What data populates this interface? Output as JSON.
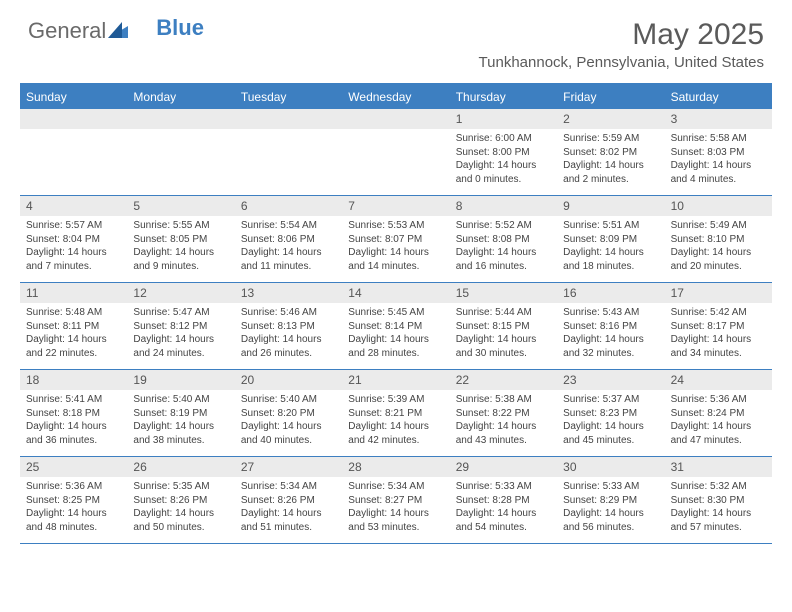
{
  "logo": {
    "text1": "General",
    "text2": "Blue"
  },
  "title": "May 2025",
  "location": "Tunkhannock, Pennsylvania, United States",
  "colors": {
    "accent": "#3d7fc1",
    "header_bg": "#3d7fc1",
    "header_text": "#ffffff",
    "daynum_bg": "#ebebeb",
    "text": "#5a5a5a"
  },
  "day_headers": [
    "Sunday",
    "Monday",
    "Tuesday",
    "Wednesday",
    "Thursday",
    "Friday",
    "Saturday"
  ],
  "weeks": [
    [
      {
        "n": "",
        "sr": "",
        "ss": "",
        "dl": ""
      },
      {
        "n": "",
        "sr": "",
        "ss": "",
        "dl": ""
      },
      {
        "n": "",
        "sr": "",
        "ss": "",
        "dl": ""
      },
      {
        "n": "",
        "sr": "",
        "ss": "",
        "dl": ""
      },
      {
        "n": "1",
        "sr": "Sunrise: 6:00 AM",
        "ss": "Sunset: 8:00 PM",
        "dl": "Daylight: 14 hours and 0 minutes."
      },
      {
        "n": "2",
        "sr": "Sunrise: 5:59 AM",
        "ss": "Sunset: 8:02 PM",
        "dl": "Daylight: 14 hours and 2 minutes."
      },
      {
        "n": "3",
        "sr": "Sunrise: 5:58 AM",
        "ss": "Sunset: 8:03 PM",
        "dl": "Daylight: 14 hours and 4 minutes."
      }
    ],
    [
      {
        "n": "4",
        "sr": "Sunrise: 5:57 AM",
        "ss": "Sunset: 8:04 PM",
        "dl": "Daylight: 14 hours and 7 minutes."
      },
      {
        "n": "5",
        "sr": "Sunrise: 5:55 AM",
        "ss": "Sunset: 8:05 PM",
        "dl": "Daylight: 14 hours and 9 minutes."
      },
      {
        "n": "6",
        "sr": "Sunrise: 5:54 AM",
        "ss": "Sunset: 8:06 PM",
        "dl": "Daylight: 14 hours and 11 minutes."
      },
      {
        "n": "7",
        "sr": "Sunrise: 5:53 AM",
        "ss": "Sunset: 8:07 PM",
        "dl": "Daylight: 14 hours and 14 minutes."
      },
      {
        "n": "8",
        "sr": "Sunrise: 5:52 AM",
        "ss": "Sunset: 8:08 PM",
        "dl": "Daylight: 14 hours and 16 minutes."
      },
      {
        "n": "9",
        "sr": "Sunrise: 5:51 AM",
        "ss": "Sunset: 8:09 PM",
        "dl": "Daylight: 14 hours and 18 minutes."
      },
      {
        "n": "10",
        "sr": "Sunrise: 5:49 AM",
        "ss": "Sunset: 8:10 PM",
        "dl": "Daylight: 14 hours and 20 minutes."
      }
    ],
    [
      {
        "n": "11",
        "sr": "Sunrise: 5:48 AM",
        "ss": "Sunset: 8:11 PM",
        "dl": "Daylight: 14 hours and 22 minutes."
      },
      {
        "n": "12",
        "sr": "Sunrise: 5:47 AM",
        "ss": "Sunset: 8:12 PM",
        "dl": "Daylight: 14 hours and 24 minutes."
      },
      {
        "n": "13",
        "sr": "Sunrise: 5:46 AM",
        "ss": "Sunset: 8:13 PM",
        "dl": "Daylight: 14 hours and 26 minutes."
      },
      {
        "n": "14",
        "sr": "Sunrise: 5:45 AM",
        "ss": "Sunset: 8:14 PM",
        "dl": "Daylight: 14 hours and 28 minutes."
      },
      {
        "n": "15",
        "sr": "Sunrise: 5:44 AM",
        "ss": "Sunset: 8:15 PM",
        "dl": "Daylight: 14 hours and 30 minutes."
      },
      {
        "n": "16",
        "sr": "Sunrise: 5:43 AM",
        "ss": "Sunset: 8:16 PM",
        "dl": "Daylight: 14 hours and 32 minutes."
      },
      {
        "n": "17",
        "sr": "Sunrise: 5:42 AM",
        "ss": "Sunset: 8:17 PM",
        "dl": "Daylight: 14 hours and 34 minutes."
      }
    ],
    [
      {
        "n": "18",
        "sr": "Sunrise: 5:41 AM",
        "ss": "Sunset: 8:18 PM",
        "dl": "Daylight: 14 hours and 36 minutes."
      },
      {
        "n": "19",
        "sr": "Sunrise: 5:40 AM",
        "ss": "Sunset: 8:19 PM",
        "dl": "Daylight: 14 hours and 38 minutes."
      },
      {
        "n": "20",
        "sr": "Sunrise: 5:40 AM",
        "ss": "Sunset: 8:20 PM",
        "dl": "Daylight: 14 hours and 40 minutes."
      },
      {
        "n": "21",
        "sr": "Sunrise: 5:39 AM",
        "ss": "Sunset: 8:21 PM",
        "dl": "Daylight: 14 hours and 42 minutes."
      },
      {
        "n": "22",
        "sr": "Sunrise: 5:38 AM",
        "ss": "Sunset: 8:22 PM",
        "dl": "Daylight: 14 hours and 43 minutes."
      },
      {
        "n": "23",
        "sr": "Sunrise: 5:37 AM",
        "ss": "Sunset: 8:23 PM",
        "dl": "Daylight: 14 hours and 45 minutes."
      },
      {
        "n": "24",
        "sr": "Sunrise: 5:36 AM",
        "ss": "Sunset: 8:24 PM",
        "dl": "Daylight: 14 hours and 47 minutes."
      }
    ],
    [
      {
        "n": "25",
        "sr": "Sunrise: 5:36 AM",
        "ss": "Sunset: 8:25 PM",
        "dl": "Daylight: 14 hours and 48 minutes."
      },
      {
        "n": "26",
        "sr": "Sunrise: 5:35 AM",
        "ss": "Sunset: 8:26 PM",
        "dl": "Daylight: 14 hours and 50 minutes."
      },
      {
        "n": "27",
        "sr": "Sunrise: 5:34 AM",
        "ss": "Sunset: 8:26 PM",
        "dl": "Daylight: 14 hours and 51 minutes."
      },
      {
        "n": "28",
        "sr": "Sunrise: 5:34 AM",
        "ss": "Sunset: 8:27 PM",
        "dl": "Daylight: 14 hours and 53 minutes."
      },
      {
        "n": "29",
        "sr": "Sunrise: 5:33 AM",
        "ss": "Sunset: 8:28 PM",
        "dl": "Daylight: 14 hours and 54 minutes."
      },
      {
        "n": "30",
        "sr": "Sunrise: 5:33 AM",
        "ss": "Sunset: 8:29 PM",
        "dl": "Daylight: 14 hours and 56 minutes."
      },
      {
        "n": "31",
        "sr": "Sunrise: 5:32 AM",
        "ss": "Sunset: 8:30 PM",
        "dl": "Daylight: 14 hours and 57 minutes."
      }
    ]
  ]
}
